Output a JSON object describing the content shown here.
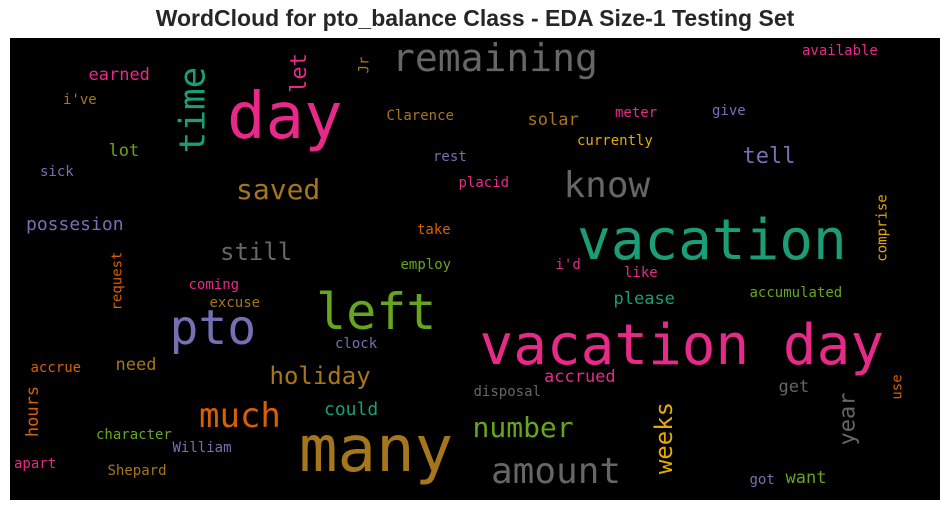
{
  "title": "WordCloud for pto_balance Class - EDA Size-1 Testing Set",
  "chart_data": {
    "type": "wordcloud",
    "background": "#000000",
    "words": [
      {
        "text": "vacation day",
        "color": "#e7298a",
        "orientation": "horizontal"
      },
      {
        "text": "vacation",
        "color": "#1b9e77",
        "orientation": "horizontal"
      },
      {
        "text": "many",
        "color": "#a6761d",
        "orientation": "horizontal"
      },
      {
        "text": "day",
        "color": "#e7298a",
        "orientation": "horizontal"
      },
      {
        "text": "left",
        "color": "#66a61e",
        "orientation": "horizontal"
      },
      {
        "text": "pto",
        "color": "#7570b3",
        "orientation": "horizontal"
      },
      {
        "text": "remaining",
        "color": "#666666",
        "orientation": "horizontal"
      },
      {
        "text": "know",
        "color": "#666666",
        "orientation": "horizontal"
      },
      {
        "text": "amount",
        "color": "#666666",
        "orientation": "horizontal"
      },
      {
        "text": "time",
        "color": "#1b9e77",
        "orientation": "vertical"
      },
      {
        "text": "much",
        "color": "#d95f02",
        "orientation": "horizontal"
      },
      {
        "text": "saved",
        "color": "#a6761d",
        "orientation": "horizontal"
      },
      {
        "text": "number",
        "color": "#66a61e",
        "orientation": "horizontal"
      },
      {
        "text": "holiday",
        "color": "#a6761d",
        "orientation": "horizontal"
      },
      {
        "text": "weeks",
        "color": "#e6ab02",
        "orientation": "vertical"
      },
      {
        "text": "still",
        "color": "#666666",
        "orientation": "horizontal"
      },
      {
        "text": "tell",
        "color": "#7570b3",
        "orientation": "horizontal"
      },
      {
        "text": "year",
        "color": "#666666",
        "orientation": "vertical"
      },
      {
        "text": "let",
        "color": "#e7298a",
        "orientation": "vertical"
      },
      {
        "text": "could",
        "color": "#1b9e77",
        "orientation": "horizontal"
      },
      {
        "text": "possesion",
        "color": "#7570b3",
        "orientation": "horizontal"
      },
      {
        "text": "solar",
        "color": "#a6761d",
        "orientation": "horizontal"
      },
      {
        "text": "earned",
        "color": "#e7298a",
        "orientation": "horizontal"
      },
      {
        "text": "lot",
        "color": "#66a61e",
        "orientation": "horizontal"
      },
      {
        "text": "please",
        "color": "#1b9e77",
        "orientation": "horizontal"
      },
      {
        "text": "accrued",
        "color": "#e7298a",
        "orientation": "horizontal"
      },
      {
        "text": "need",
        "color": "#a6761d",
        "orientation": "horizontal"
      },
      {
        "text": "hours",
        "color": "#d95f02",
        "orientation": "vertical"
      },
      {
        "text": "want",
        "color": "#66a61e",
        "orientation": "horizontal"
      },
      {
        "text": "get",
        "color": "#666666",
        "orientation": "horizontal"
      },
      {
        "text": "available",
        "color": "#e7298a",
        "orientation": "horizontal"
      },
      {
        "text": "Clarence",
        "color": "#a6761d",
        "orientation": "horizontal"
      },
      {
        "text": "meter",
        "color": "#e7298a",
        "orientation": "horizontal"
      },
      {
        "text": "give",
        "color": "#7570b3",
        "orientation": "horizontal"
      },
      {
        "text": "currently",
        "color": "#e6ab02",
        "orientation": "horizontal"
      },
      {
        "text": "rest",
        "color": "#7570b3",
        "orientation": "horizontal"
      },
      {
        "text": "placid",
        "color": "#e7298a",
        "orientation": "horizontal"
      },
      {
        "text": "i've",
        "color": "#a6761d",
        "orientation": "horizontal"
      },
      {
        "text": "sick",
        "color": "#7570b3",
        "orientation": "horizontal"
      },
      {
        "text": "Jr",
        "color": "#a6761d",
        "orientation": "vertical"
      },
      {
        "text": "take",
        "color": "#d95f02",
        "orientation": "horizontal"
      },
      {
        "text": "comprise",
        "color": "#e6ab02",
        "orientation": "vertical"
      },
      {
        "text": "employ",
        "color": "#66a61e",
        "orientation": "horizontal"
      },
      {
        "text": "i'd",
        "color": "#e7298a",
        "orientation": "horizontal"
      },
      {
        "text": "like",
        "color": "#e7298a",
        "orientation": "horizontal"
      },
      {
        "text": "request",
        "color": "#d95f02",
        "orientation": "vertical"
      },
      {
        "text": "coming",
        "color": "#e7298a",
        "orientation": "horizontal"
      },
      {
        "text": "excuse",
        "color": "#a6761d",
        "orientation": "horizontal"
      },
      {
        "text": "accumulated",
        "color": "#66a61e",
        "orientation": "horizontal"
      },
      {
        "text": "clock",
        "color": "#7570b3",
        "orientation": "horizontal"
      },
      {
        "text": "accrue",
        "color": "#d95f02",
        "orientation": "horizontal"
      },
      {
        "text": "disposal",
        "color": "#666666",
        "orientation": "horizontal"
      },
      {
        "text": "use",
        "color": "#d95f02",
        "orientation": "vertical"
      },
      {
        "text": "character",
        "color": "#66a61e",
        "orientation": "horizontal"
      },
      {
        "text": "William",
        "color": "#7570b3",
        "orientation": "horizontal"
      },
      {
        "text": "apart",
        "color": "#e7298a",
        "orientation": "horizontal"
      },
      {
        "text": "Shepard",
        "color": "#a6761d",
        "orientation": "horizontal"
      },
      {
        "text": "got",
        "color": "#7570b3",
        "orientation": "horizontal"
      }
    ]
  }
}
